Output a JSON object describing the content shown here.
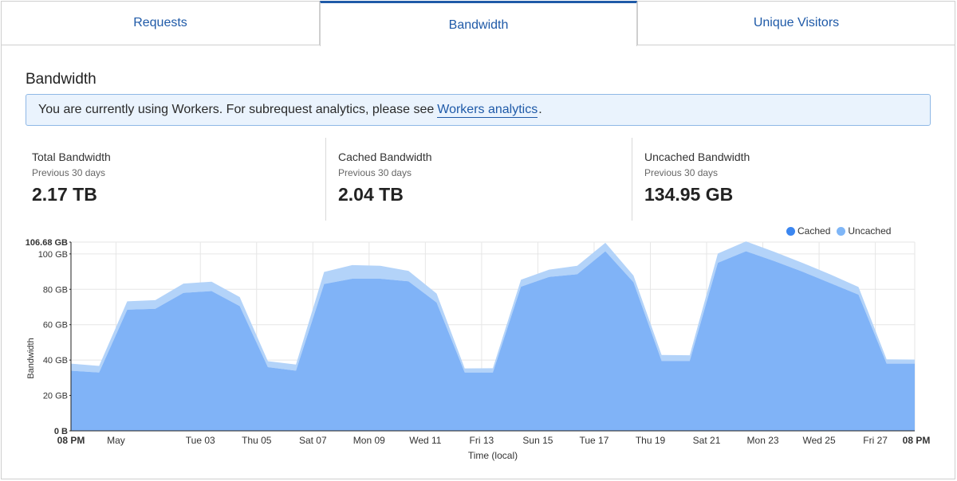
{
  "tabs": [
    {
      "label": "Requests",
      "active": false
    },
    {
      "label": "Bandwidth",
      "active": true
    },
    {
      "label": "Unique Visitors",
      "active": false
    }
  ],
  "section": {
    "title": "Bandwidth"
  },
  "notice": {
    "text": "You are currently using Workers. For subrequest analytics, please see",
    "link_text": "Workers analytics",
    "suffix": "."
  },
  "stats": [
    {
      "label": "Total Bandwidth",
      "sublabel": "Previous 30 days",
      "value": "2.17 TB"
    },
    {
      "label": "Cached Bandwidth",
      "sublabel": "Previous 30 days",
      "value": "2.04 TB"
    },
    {
      "label": "Uncached Bandwidth",
      "sublabel": "Previous 30 days",
      "value": "134.95 GB"
    }
  ],
  "colors": {
    "accent": "#1f5aa8",
    "cached": "#3b86f0",
    "uncached": "#7fb6f7",
    "cached_fill": "#80b3f7",
    "uncached_fill": "#b3d3f9"
  },
  "chart_data": {
    "type": "area",
    "stacked": true,
    "ylabel": "Bandwidth",
    "xlabel": "Time (local)",
    "ylim": [
      0,
      106.68
    ],
    "y_unit": "GB",
    "y_ticks": [
      "0 B",
      "20 GB",
      "40 GB",
      "60 GB",
      "80 GB",
      "100 GB",
      "106.68 GB"
    ],
    "y_tick_values": [
      0,
      20,
      40,
      60,
      80,
      100,
      106.68
    ],
    "x_ticks": [
      "08 PM",
      "May",
      "Tue 03",
      "Thu 05",
      "Sat 07",
      "Mon 09",
      "Wed 11",
      "Fri 13",
      "Sun 15",
      "Tue 17",
      "Thu 19",
      "Sat 21",
      "Mon 23",
      "Wed 25",
      "Fri 27",
      "08 PM"
    ],
    "x_tick_days": [
      0,
      1.6,
      4.6,
      6.6,
      8.6,
      10.6,
      12.6,
      14.6,
      16.6,
      18.6,
      20.6,
      22.6,
      24.6,
      26.6,
      28.6,
      30
    ],
    "legend": [
      {
        "name": "Cached"
      },
      {
        "name": "Uncached"
      }
    ],
    "grid": true,
    "x_days": [
      0,
      1,
      2,
      3,
      4,
      5,
      6,
      7,
      8,
      9,
      10,
      11,
      12,
      13,
      14,
      15,
      16,
      17,
      18,
      19,
      20,
      21,
      22,
      23,
      24,
      25,
      26,
      27,
      28,
      29,
      30
    ],
    "series": [
      {
        "name": "Cached",
        "values": [
          34,
          33,
          68.5,
          69,
          78,
          79,
          70.5,
          36,
          34,
          83,
          86,
          86,
          84.5,
          72.5,
          33,
          33,
          81.5,
          87,
          88.5,
          101.5,
          84,
          39.5,
          39.5,
          95,
          101.5,
          96,
          90,
          83.5,
          77,
          38,
          38
        ]
      },
      {
        "name": "Uncached",
        "values": [
          4,
          3.7,
          4.7,
          4.9,
          5.2,
          5.3,
          5.1,
          3.4,
          3.5,
          6.8,
          7.7,
          7.3,
          5.9,
          5.1,
          2.3,
          2.4,
          3.9,
          4.1,
          4.8,
          4.8,
          3.8,
          3.4,
          3.2,
          5.2,
          5.6,
          5.2,
          5,
          4.9,
          4.3,
          2.4,
          2.3
        ]
      }
    ]
  }
}
